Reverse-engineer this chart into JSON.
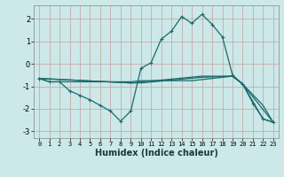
{
  "xlabel": "Humidex (Indice chaleur)",
  "bg_color": "#cce8e8",
  "grid_color": "#b8d4d4",
  "line_color": "#1a6b6b",
  "xlim": [
    -0.5,
    23.5
  ],
  "ylim": [
    -3.3,
    2.6
  ],
  "xticks": [
    0,
    1,
    2,
    3,
    4,
    5,
    6,
    7,
    8,
    9,
    10,
    11,
    12,
    13,
    14,
    15,
    16,
    17,
    18,
    19,
    20,
    21,
    22,
    23
  ],
  "yticks": [
    -3,
    -2,
    -1,
    0,
    1,
    2
  ],
  "series1": [
    [
      0,
      -0.65
    ],
    [
      1,
      -0.8
    ],
    [
      2,
      -0.8
    ],
    [
      3,
      -1.2
    ],
    [
      4,
      -1.4
    ],
    [
      5,
      -1.6
    ],
    [
      6,
      -1.85
    ],
    [
      7,
      -2.1
    ],
    [
      8,
      -2.55
    ],
    [
      9,
      -2.1
    ],
    [
      10,
      -0.2
    ],
    [
      11,
      0.05
    ],
    [
      12,
      1.1
    ],
    [
      13,
      1.45
    ],
    [
      14,
      2.1
    ],
    [
      15,
      1.8
    ],
    [
      16,
      2.2
    ],
    [
      17,
      1.75
    ],
    [
      18,
      1.2
    ],
    [
      19,
      -0.5
    ],
    [
      20,
      -0.9
    ],
    [
      21,
      -1.75
    ],
    [
      22,
      -2.45
    ],
    [
      23,
      -2.6
    ]
  ],
  "series2": [
    [
      0,
      -0.65
    ],
    [
      1,
      -0.8
    ],
    [
      2,
      -0.8
    ],
    [
      3,
      -0.8
    ],
    [
      4,
      -0.8
    ],
    [
      5,
      -0.8
    ],
    [
      6,
      -0.8
    ],
    [
      7,
      -0.8
    ],
    [
      8,
      -0.8
    ],
    [
      9,
      -0.8
    ],
    [
      10,
      -0.75
    ],
    [
      11,
      -0.75
    ],
    [
      12,
      -0.75
    ],
    [
      13,
      -0.75
    ],
    [
      14,
      -0.75
    ],
    [
      15,
      -0.75
    ],
    [
      16,
      -0.7
    ],
    [
      17,
      -0.65
    ],
    [
      18,
      -0.6
    ],
    [
      19,
      -0.55
    ],
    [
      20,
      -0.9
    ],
    [
      22,
      -2.45
    ],
    [
      23,
      -2.6
    ]
  ],
  "series3": [
    [
      0,
      -0.65
    ],
    [
      9,
      -0.85
    ],
    [
      10,
      -0.85
    ],
    [
      16,
      -0.6
    ],
    [
      19,
      -0.55
    ],
    [
      20,
      -0.9
    ],
    [
      22,
      -1.85
    ],
    [
      23,
      -2.6
    ]
  ],
  "series4": [
    [
      0,
      -0.65
    ],
    [
      9,
      -0.85
    ],
    [
      16,
      -0.55
    ],
    [
      19,
      -0.55
    ],
    [
      20,
      -0.9
    ],
    [
      23,
      -2.6
    ]
  ]
}
